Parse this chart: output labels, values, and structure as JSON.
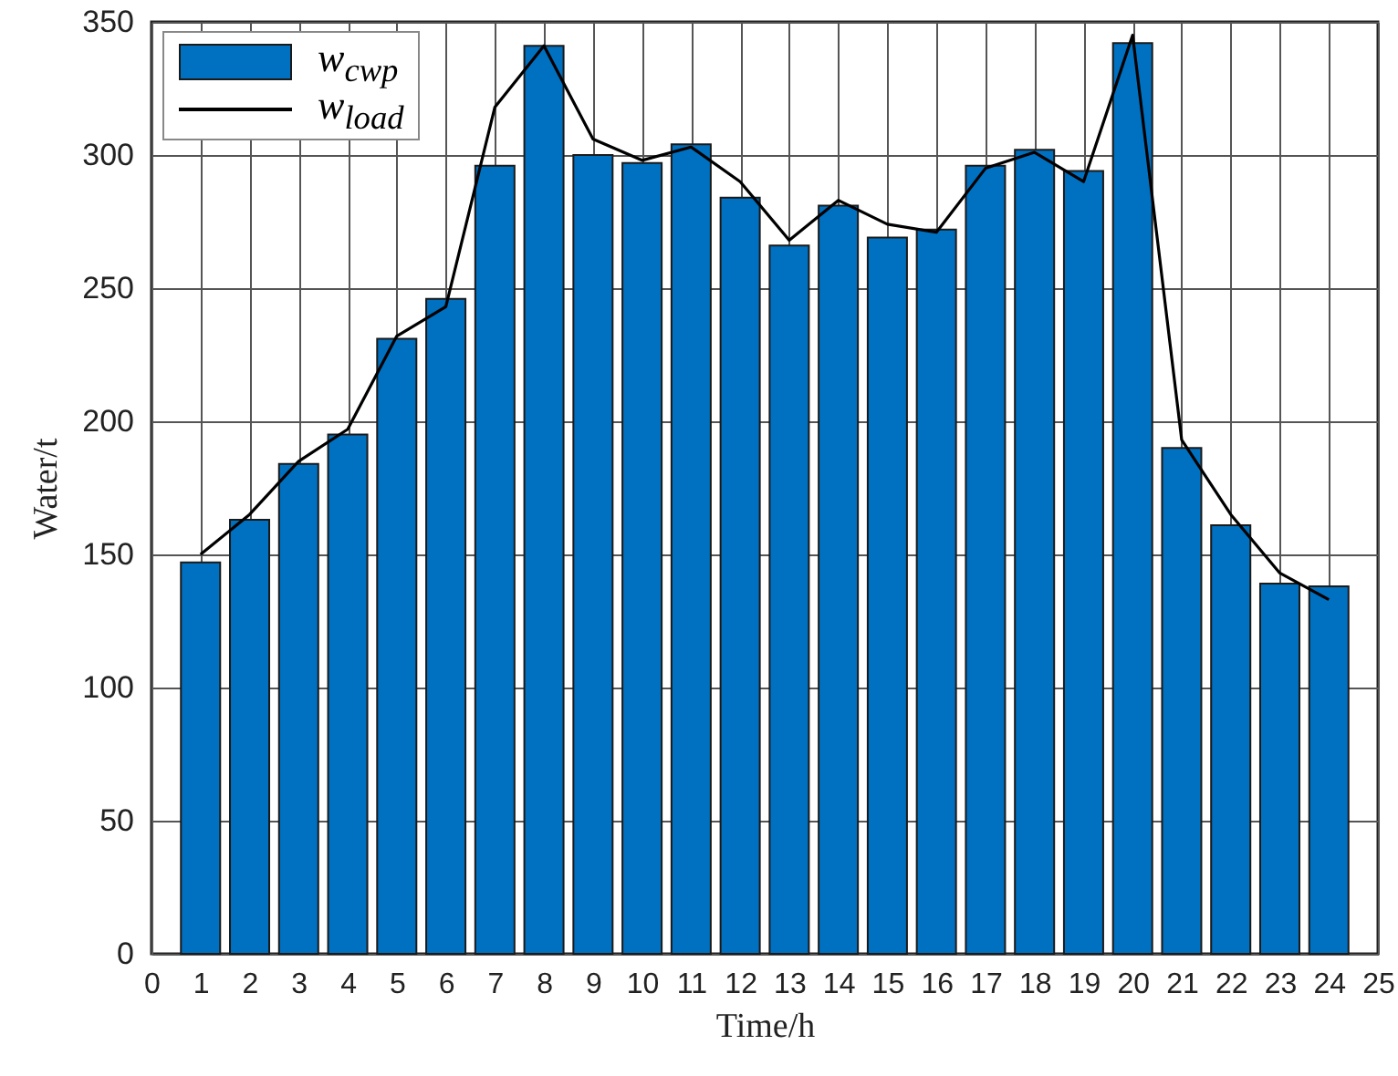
{
  "chart_data": {
    "type": "bar",
    "xlabel": "Time/h",
    "ylabel": "Water/t",
    "x": [
      1,
      2,
      3,
      4,
      5,
      6,
      7,
      8,
      9,
      10,
      11,
      12,
      13,
      14,
      15,
      16,
      17,
      18,
      19,
      20,
      21,
      22,
      23,
      24
    ],
    "series": [
      {
        "name": "w$_{cwp}$",
        "color": "#0070c0",
        "values": [
          147,
          163,
          184,
          195,
          231,
          246,
          296,
          341,
          300,
          297,
          304,
          284,
          266,
          281,
          269,
          272,
          296,
          302,
          294,
          342,
          190,
          161,
          139,
          138
        ]
      },
      {
        "name": "w$_{load}$",
        "type": "line",
        "color": "#000000",
        "values": [
          150,
          165,
          185,
          197,
          232,
          243,
          318,
          341,
          306,
          298,
          303,
          290,
          268,
          283,
          274,
          271,
          295,
          301,
          290,
          345,
          193,
          165,
          143,
          133
        ]
      }
    ],
    "xlim": [
      0,
      25
    ],
    "xticks": [
      0,
      1,
      2,
      3,
      4,
      5,
      6,
      7,
      8,
      9,
      10,
      11,
      12,
      13,
      14,
      15,
      16,
      17,
      18,
      19,
      20,
      21,
      22,
      23,
      24,
      25
    ],
    "ylim": [
      0,
      350
    ],
    "yticks": [
      0,
      50,
      100,
      150,
      200,
      250,
      300,
      350
    ],
    "grid": true,
    "legend": "top left"
  }
}
